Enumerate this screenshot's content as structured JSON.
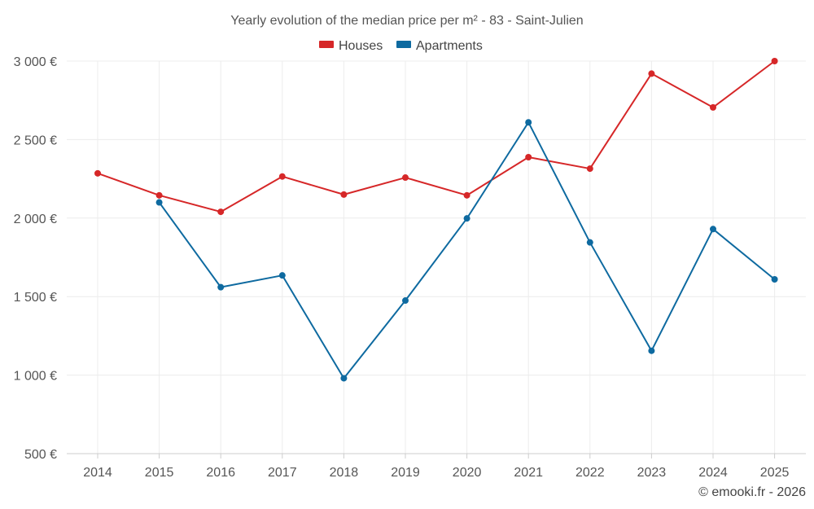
{
  "chart_data": {
    "type": "line",
    "title": "Yearly evolution of the median price per m² - 83 - Saint-Julien",
    "categories": [
      "2014",
      "2015",
      "2016",
      "2017",
      "2018",
      "2019",
      "2020",
      "2021",
      "2022",
      "2023",
      "2024",
      "2025"
    ],
    "series": [
      {
        "name": "Houses",
        "color": "#d62728",
        "values": [
          2285,
          2145,
          2040,
          2265,
          2150,
          2258,
          2145,
          2388,
          2315,
          2920,
          2705,
          3000
        ]
      },
      {
        "name": "Apartments",
        "color": "#0e6aa0",
        "values": [
          null,
          2100,
          1560,
          1635,
          980,
          1475,
          1998,
          2610,
          1845,
          1155,
          1930,
          1610
        ]
      }
    ],
    "ylim": [
      500,
      3000
    ],
    "yticks": [
      500,
      1000,
      1500,
      2000,
      2500,
      3000
    ],
    "ytick_labels": [
      "500 €",
      "1 000 €",
      "1 500 €",
      "2 000 €",
      "2 500 €",
      "3 000 €"
    ],
    "grid": true,
    "legend_position": "top-center",
    "xlabel": "",
    "ylabel": ""
  },
  "credit": "© emooki.fr - 2026"
}
